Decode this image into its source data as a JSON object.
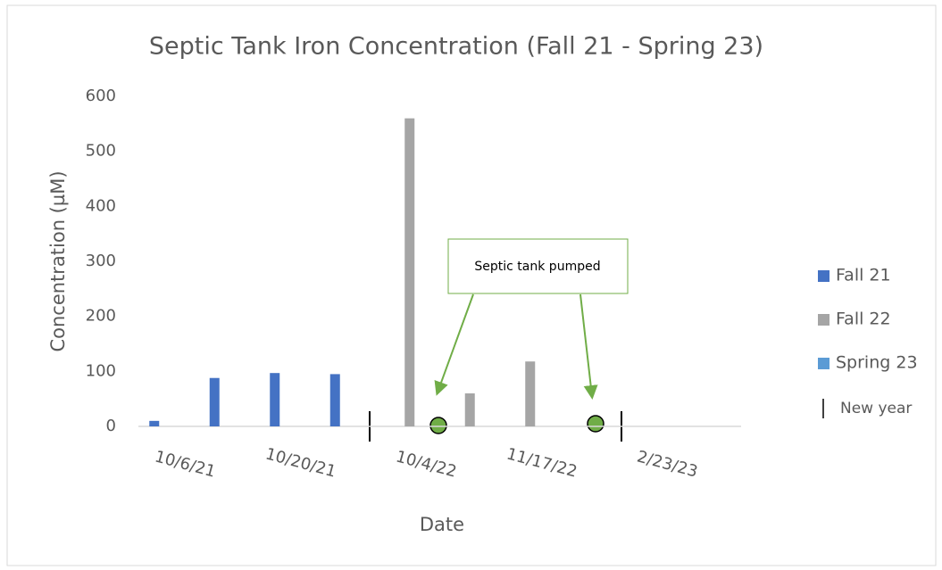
{
  "chart_data": {
    "type": "bar",
    "title": "Septic Tank Iron Concentration (Fall 21 - Spring 23)",
    "x_label": "Date",
    "y_label": "Concentration (µM)",
    "categories": [
      "10/6/21",
      null,
      "10/20/21",
      null,
      "10/4/22",
      null,
      "11/17/22",
      null,
      "2/23/23",
      null
    ],
    "series": [
      {
        "name": "Fall 21",
        "color": "#4472c4",
        "values": [
          10,
          88,
          97,
          95,
          null,
          null,
          null,
          null,
          null,
          null
        ]
      },
      {
        "name": "Fall 22",
        "color": "#a5a5a5",
        "values": [
          null,
          null,
          null,
          null,
          560,
          60,
          118,
          null,
          null,
          null
        ]
      },
      {
        "name": "Spring 23",
        "color": "#5b9bd5",
        "values": [
          null,
          null,
          null,
          null,
          null,
          null,
          null,
          null,
          null,
          null
        ]
      }
    ],
    "ylim": [
      0,
      600
    ],
    "yticks": [
      0,
      100,
      200,
      300,
      400,
      500,
      600
    ],
    "legend": "right",
    "new_year_label": "New year",
    "annotation": "Septic tank pumped"
  }
}
